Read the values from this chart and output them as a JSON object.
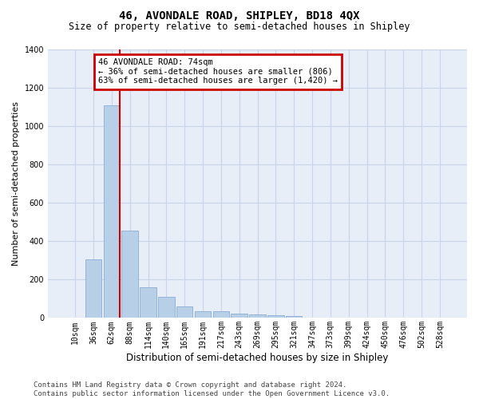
{
  "title": "46, AVONDALE ROAD, SHIPLEY, BD18 4QX",
  "subtitle": "Size of property relative to semi-detached houses in Shipley",
  "xlabel": "Distribution of semi-detached houses by size in Shipley",
  "ylabel": "Number of semi-detached properties",
  "footer_line1": "Contains HM Land Registry data © Crown copyright and database right 2024.",
  "footer_line2": "Contains public sector information licensed under the Open Government Licence v3.0.",
  "categories": [
    "10sqm",
    "36sqm",
    "62sqm",
    "88sqm",
    "114sqm",
    "140sqm",
    "165sqm",
    "191sqm",
    "217sqm",
    "243sqm",
    "269sqm",
    "295sqm",
    "321sqm",
    "347sqm",
    "373sqm",
    "399sqm",
    "424sqm",
    "450sqm",
    "476sqm",
    "502sqm",
    "528sqm"
  ],
  "values": [
    0,
    305,
    1105,
    455,
    158,
    108,
    58,
    36,
    34,
    22,
    18,
    15,
    10,
    0,
    0,
    0,
    0,
    0,
    0,
    0,
    0
  ],
  "bar_color": "#b8cfe8",
  "bar_edge_color": "#8aadd4",
  "grid_color": "#c8d4e8",
  "background_color": "#e8eef8",
  "vline_x_index": 2,
  "vline_color": "#cc0000",
  "annotation_text": "46 AVONDALE ROAD: 74sqm\n← 36% of semi-detached houses are smaller (806)\n63% of semi-detached houses are larger (1,420) →",
  "annotation_box_color": "#cc0000",
  "ylim": [
    0,
    1400
  ],
  "yticks": [
    0,
    200,
    400,
    600,
    800,
    1000,
    1200,
    1400
  ],
  "title_fontsize": 10,
  "subtitle_fontsize": 8.5,
  "ylabel_fontsize": 8,
  "xlabel_fontsize": 8.5,
  "tick_fontsize": 7,
  "footer_fontsize": 6.5,
  "annotation_fontsize": 7.5
}
